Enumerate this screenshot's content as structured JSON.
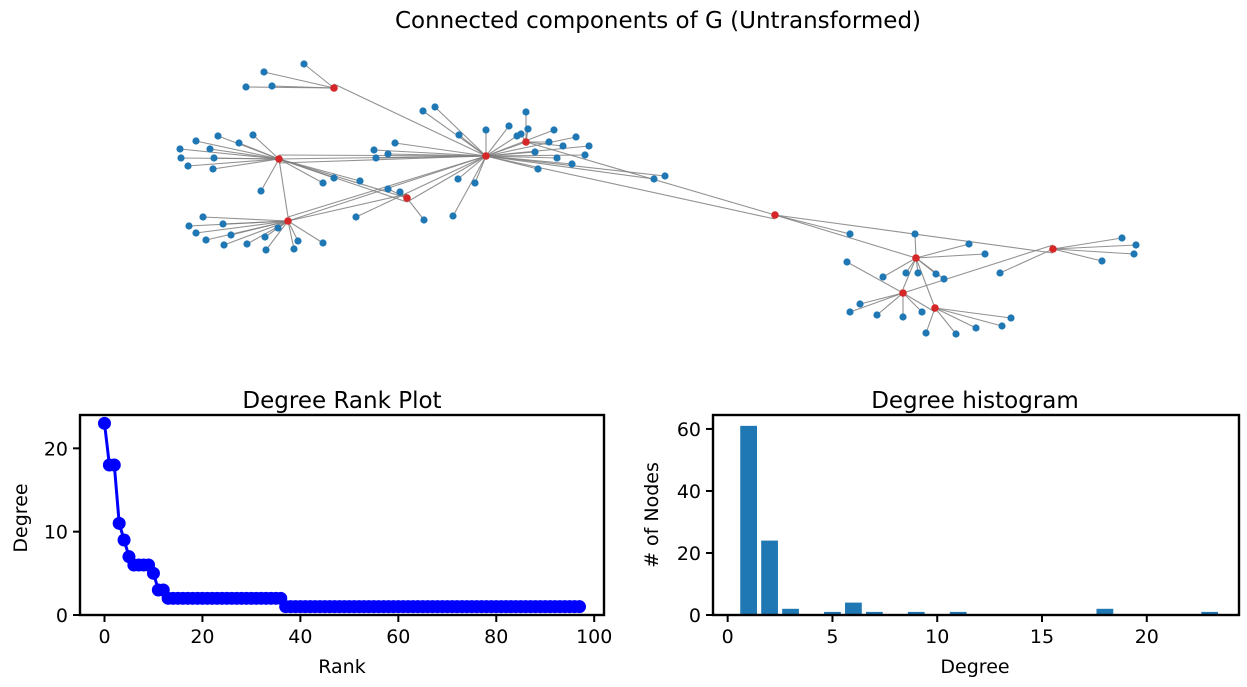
{
  "figure": {
    "network_title": "Connected components of G (Untransformed)"
  },
  "colors": {
    "hub_node": "#d62728",
    "leaf_node": "#1f77b4",
    "edge": "#7f7f7f",
    "rank_line": "#0000ff",
    "histogram_bar": "#1f77b4"
  },
  "chart_data": [
    {
      "type": "network",
      "title": "Connected components of G (Untransformed)",
      "nodes_total": 98,
      "hub_degrees": [
        23,
        18,
        18,
        11,
        9,
        7,
        6,
        6,
        6,
        6,
        5,
        3,
        3
      ]
    },
    {
      "type": "line",
      "title": "Degree Rank Plot",
      "xlabel": "Rank",
      "ylabel": "Degree",
      "xlim": [
        -5,
        102
      ],
      "ylim": [
        0,
        24
      ],
      "xticks": [
        0,
        20,
        40,
        60,
        80,
        100
      ],
      "yticks": [
        0,
        10,
        20
      ],
      "marker": "o",
      "series": [
        {
          "values": [
            23,
            18,
            18,
            11,
            9,
            7,
            6,
            6,
            6,
            6,
            5,
            3,
            3,
            2,
            2,
            2,
            2,
            2,
            2,
            2,
            2,
            2,
            2,
            2,
            2,
            2,
            2,
            2,
            2,
            2,
            2,
            2,
            2,
            2,
            2,
            2,
            2,
            1,
            1,
            1,
            1,
            1,
            1,
            1,
            1,
            1,
            1,
            1,
            1,
            1,
            1,
            1,
            1,
            1,
            1,
            1,
            1,
            1,
            1,
            1,
            1,
            1,
            1,
            1,
            1,
            1,
            1,
            1,
            1,
            1,
            1,
            1,
            1,
            1,
            1,
            1,
            1,
            1,
            1,
            1,
            1,
            1,
            1,
            1,
            1,
            1,
            1,
            1,
            1,
            1,
            1,
            1,
            1,
            1,
            1,
            1,
            1,
            1
          ]
        }
      ]
    },
    {
      "type": "bar",
      "title": "Degree histogram",
      "xlabel": "Degree",
      "ylabel": "# of Nodes",
      "xlim": [
        -0.7,
        24.4
      ],
      "ylim": [
        0,
        64.5
      ],
      "xticks": [
        0,
        5,
        10,
        15,
        20
      ],
      "yticks": [
        0,
        20,
        40,
        60
      ],
      "categories": [
        1,
        2,
        3,
        5,
        6,
        7,
        9,
        11,
        18,
        23
      ],
      "values": [
        61,
        24,
        2,
        1,
        4,
        1,
        1,
        1,
        2,
        1
      ]
    }
  ]
}
